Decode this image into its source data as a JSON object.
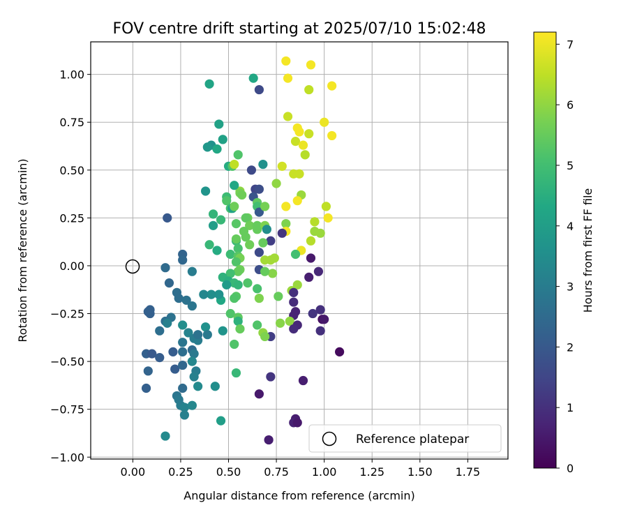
{
  "chart_data": {
    "type": "scatter",
    "title": "FOV centre drift starting at 2025/07/10 15:02:48",
    "xlabel": "Angular distance from reference (arcmin)",
    "ylabel": "Rotation from reference (arcmin)",
    "xlim": [
      -0.22,
      1.96
    ],
    "ylim": [
      -1.01,
      1.17
    ],
    "x_ticks": [
      "0.00",
      "0.25",
      "0.50",
      "0.75",
      "1.00",
      "1.25",
      "1.50",
      "1.75"
    ],
    "y_ticks": [
      "−1.00",
      "−0.75",
      "−0.50",
      "−0.25",
      "0.00",
      "0.25",
      "0.50",
      "0.75",
      "1.00"
    ],
    "grid": true,
    "colormap": "viridis",
    "colorbar": {
      "label": "Hours from first FF file",
      "range": [
        0,
        7.2
      ],
      "ticks": [
        "0",
        "1",
        "2",
        "3",
        "4",
        "5",
        "6",
        "7"
      ]
    },
    "legend": {
      "placement": "lower-right",
      "entries": [
        "Reference platepar"
      ]
    },
    "reference_point": {
      "x": 0.0,
      "y": 0.0
    },
    "points": [
      [
        0.8,
        1.07,
        7.1
      ],
      [
        0.93,
        1.05,
        7.1
      ],
      [
        0.81,
        0.98,
        7.1
      ],
      [
        1.04,
        0.94,
        7.1
      ],
      [
        0.92,
        0.92,
        6.5
      ],
      [
        0.81,
        0.78,
        6.6
      ],
      [
        1.0,
        0.75,
        7.0
      ],
      [
        0.86,
        0.72,
        7.1
      ],
      [
        0.87,
        0.7,
        7.1
      ],
      [
        0.92,
        0.69,
        6.6
      ],
      [
        1.04,
        0.68,
        7.1
      ],
      [
        0.85,
        0.65,
        6.6
      ],
      [
        0.89,
        0.63,
        7.0
      ],
      [
        0.9,
        0.58,
        6.4
      ],
      [
        0.78,
        0.52,
        6.7
      ],
      [
        0.84,
        0.48,
        6.6
      ],
      [
        0.87,
        0.48,
        6.6
      ],
      [
        0.75,
        0.43,
        6.0
      ],
      [
        0.88,
        0.37,
        6.1
      ],
      [
        0.86,
        0.34,
        7.1
      ],
      [
        0.8,
        0.31,
        7.1
      ],
      [
        1.01,
        0.31,
        6.5
      ],
      [
        1.02,
        0.25,
        7.1
      ],
      [
        0.95,
        0.23,
        6.4
      ],
      [
        0.8,
        0.22,
        5.8
      ],
      [
        0.95,
        0.18,
        6.1
      ],
      [
        0.98,
        0.17,
        6.1
      ],
      [
        0.8,
        0.18,
        7.1
      ],
      [
        0.78,
        0.17,
        1.1
      ],
      [
        0.93,
        0.13,
        6.4
      ],
      [
        0.88,
        0.08,
        7.0
      ],
      [
        0.85,
        0.06,
        5.0
      ],
      [
        0.93,
        0.04,
        0.5
      ],
      [
        0.97,
        -0.03,
        0.8
      ],
      [
        0.92,
        -0.06,
        0.6
      ],
      [
        0.86,
        -0.1,
        6.1
      ],
      [
        0.83,
        -0.13,
        6.1
      ],
      [
        0.84,
        -0.14,
        1.0
      ],
      [
        0.84,
        -0.19,
        0.9
      ],
      [
        0.85,
        -0.24,
        0.7
      ],
      [
        0.98,
        -0.23,
        1.0
      ],
      [
        0.84,
        -0.26,
        0.7
      ],
      [
        0.94,
        -0.25,
        1.1
      ],
      [
        0.99,
        -0.28,
        0.3
      ],
      [
        1.0,
        -0.28,
        0.5
      ],
      [
        0.82,
        -0.29,
        6.0
      ],
      [
        0.86,
        -0.31,
        0.8
      ],
      [
        0.84,
        -0.33,
        0.9
      ],
      [
        0.98,
        -0.34,
        1.0
      ],
      [
        1.08,
        -0.45,
        0.2
      ],
      [
        0.89,
        -0.6,
        0.6
      ],
      [
        0.85,
        -0.8,
        0.6
      ],
      [
        0.84,
        -0.82,
        0.7
      ],
      [
        0.86,
        -0.82,
        0.5
      ],
      [
        0.71,
        -0.91,
        0.6
      ],
      [
        0.66,
        -0.67,
        0.5
      ],
      [
        0.72,
        -0.58,
        1.1
      ],
      [
        0.72,
        -0.37,
        1.3
      ],
      [
        0.77,
        -0.3,
        5.9
      ],
      [
        0.73,
        -0.04,
        5.9
      ],
      [
        0.4,
        0.95,
        4.2
      ],
      [
        0.63,
        0.98,
        4.3
      ],
      [
        0.66,
        0.92,
        1.6
      ],
      [
        0.45,
        0.74,
        4.1
      ],
      [
        0.47,
        0.66,
        4.1
      ],
      [
        0.41,
        0.63,
        3.6
      ],
      [
        0.39,
        0.62,
        3.8
      ],
      [
        0.44,
        0.61,
        4.3
      ],
      [
        0.55,
        0.58,
        5.2
      ],
      [
        0.5,
        0.52,
        4.4
      ],
      [
        0.52,
        0.52,
        5.2
      ],
      [
        0.53,
        0.53,
        6.5
      ],
      [
        0.62,
        0.5,
        1.6
      ],
      [
        0.68,
        0.53,
        3.6
      ],
      [
        0.56,
        0.39,
        6.0
      ],
      [
        0.53,
        0.42,
        4.3
      ],
      [
        0.49,
        0.36,
        4.9
      ],
      [
        0.49,
        0.34,
        5.2
      ],
      [
        0.56,
        0.38,
        5.7
      ],
      [
        0.57,
        0.37,
        5.6
      ],
      [
        0.64,
        0.4,
        1.5
      ],
      [
        0.66,
        0.4,
        1.7
      ],
      [
        0.63,
        0.36,
        1.9
      ],
      [
        0.38,
        0.39,
        3.7
      ],
      [
        0.51,
        0.3,
        5.0
      ],
      [
        0.52,
        0.3,
        4.1
      ],
      [
        0.53,
        0.31,
        5.6
      ],
      [
        0.6,
        0.25,
        5.6
      ],
      [
        0.65,
        0.33,
        5.4
      ],
      [
        0.65,
        0.31,
        5.0
      ],
      [
        0.66,
        0.28,
        2.0
      ],
      [
        0.69,
        0.31,
        5.7
      ],
      [
        0.42,
        0.27,
        4.7
      ],
      [
        0.46,
        0.24,
        4.8
      ],
      [
        0.42,
        0.21,
        4.0
      ],
      [
        0.54,
        0.22,
        5.3
      ],
      [
        0.59,
        0.25,
        5.4
      ],
      [
        0.61,
        0.21,
        5.6
      ],
      [
        0.65,
        0.21,
        5.5
      ],
      [
        0.65,
        0.19,
        5.5
      ],
      [
        0.69,
        0.21,
        5.8
      ],
      [
        0.7,
        0.19,
        3.5
      ],
      [
        0.58,
        0.18,
        5.5
      ],
      [
        0.59,
        0.15,
        5.5
      ],
      [
        0.54,
        0.13,
        4.8
      ],
      [
        0.54,
        0.14,
        5.5
      ],
      [
        0.72,
        0.13,
        1.3
      ],
      [
        0.68,
        0.12,
        5.5
      ],
      [
        0.66,
        0.07,
        1.6
      ],
      [
        0.61,
        0.11,
        5.6
      ],
      [
        0.55,
        0.09,
        5.1
      ],
      [
        0.4,
        0.11,
        4.8
      ],
      [
        0.44,
        0.08,
        4.4
      ],
      [
        0.51,
        0.06,
        4.9
      ],
      [
        0.55,
        0.05,
        5.3
      ],
      [
        0.56,
        0.04,
        5.7
      ],
      [
        0.54,
        0.02,
        5.2
      ],
      [
        0.69,
        0.03,
        6.2
      ],
      [
        0.72,
        0.03,
        6.2
      ],
      [
        0.74,
        0.04,
        6.2
      ],
      [
        0.66,
        -0.02,
        1.7
      ],
      [
        0.56,
        -0.02,
        5.6
      ],
      [
        0.55,
        -0.03,
        5.5
      ],
      [
        0.69,
        -0.03,
        5.5
      ],
      [
        0.51,
        -0.04,
        5.0
      ],
      [
        0.47,
        -0.06,
        4.6
      ],
      [
        0.5,
        -0.08,
        4.5
      ],
      [
        0.53,
        -0.09,
        4.8
      ],
      [
        0.55,
        -0.1,
        4.7
      ],
      [
        0.49,
        -0.1,
        3.9
      ],
      [
        0.6,
        -0.09,
        5.2
      ],
      [
        0.65,
        -0.12,
        5.1
      ],
      [
        0.54,
        -0.16,
        5.3
      ],
      [
        0.53,
        -0.17,
        5.2
      ],
      [
        0.66,
        -0.17,
        5.8
      ],
      [
        0.76,
        -0.16,
        5.5
      ],
      [
        0.46,
        -0.18,
        4.3
      ],
      [
        0.45,
        -0.15,
        3.6
      ],
      [
        0.41,
        -0.15,
        3.5
      ],
      [
        0.37,
        -0.15,
        3.3
      ],
      [
        0.51,
        -0.25,
        5.2
      ],
      [
        0.55,
        -0.27,
        5.4
      ],
      [
        0.55,
        -0.29,
        4.6
      ],
      [
        0.56,
        -0.33,
        5.5
      ],
      [
        0.65,
        -0.31,
        5.2
      ],
      [
        0.68,
        -0.35,
        6.0
      ],
      [
        0.69,
        -0.37,
        5.8
      ],
      [
        0.53,
        -0.41,
        5.2
      ],
      [
        0.47,
        -0.34,
        3.7
      ],
      [
        0.54,
        -0.56,
        4.8
      ],
      [
        0.46,
        -0.81,
        4.0
      ],
      [
        0.43,
        -0.63,
        3.5
      ],
      [
        0.31,
        -0.03,
        3.0
      ],
      [
        0.26,
        0.06,
        2.3
      ],
      [
        0.26,
        0.03,
        2.4
      ],
      [
        0.18,
        0.25,
        2.0
      ],
      [
        0.17,
        -0.01,
        2.5
      ],
      [
        0.19,
        -0.09,
        2.4
      ],
      [
        0.23,
        -0.14,
        2.6
      ],
      [
        0.24,
        -0.17,
        2.6
      ],
      [
        0.28,
        -0.18,
        2.7
      ],
      [
        0.31,
        -0.21,
        2.8
      ],
      [
        0.09,
        -0.23,
        2.2
      ],
      [
        0.08,
        -0.24,
        2.2
      ],
      [
        0.09,
        -0.25,
        2.2
      ],
      [
        0.2,
        -0.27,
        2.7
      ],
      [
        0.17,
        -0.29,
        2.6
      ],
      [
        0.18,
        -0.3,
        3.1
      ],
      [
        0.14,
        -0.34,
        2.6
      ],
      [
        0.26,
        -0.31,
        3.5
      ],
      [
        0.29,
        -0.35,
        3.2
      ],
      [
        0.32,
        -0.38,
        3.0
      ],
      [
        0.34,
        -0.39,
        3.0
      ],
      [
        0.34,
        -0.36,
        2.7
      ],
      [
        0.38,
        -0.32,
        3.6
      ],
      [
        0.39,
        -0.36,
        2.9
      ],
      [
        0.26,
        -0.4,
        2.8
      ],
      [
        0.31,
        -0.44,
        2.5
      ],
      [
        0.32,
        -0.46,
        2.9
      ],
      [
        0.07,
        -0.46,
        2.2
      ],
      [
        0.1,
        -0.46,
        2.0
      ],
      [
        0.14,
        -0.48,
        2.1
      ],
      [
        0.21,
        -0.45,
        2.1
      ],
      [
        0.26,
        -0.45,
        2.6
      ],
      [
        0.31,
        -0.5,
        3.3
      ],
      [
        0.08,
        -0.55,
        2.3
      ],
      [
        0.22,
        -0.54,
        2.1
      ],
      [
        0.26,
        -0.52,
        2.4
      ],
      [
        0.33,
        -0.55,
        3.0
      ],
      [
        0.32,
        -0.58,
        3.1
      ],
      [
        0.07,
        -0.64,
        2.2
      ],
      [
        0.26,
        -0.64,
        2.5
      ],
      [
        0.34,
        -0.63,
        3.4
      ],
      [
        0.23,
        -0.68,
        2.8
      ],
      [
        0.24,
        -0.7,
        2.9
      ],
      [
        0.25,
        -0.73,
        3.0
      ],
      [
        0.27,
        -0.74,
        3.2
      ],
      [
        0.31,
        -0.73,
        3.3
      ],
      [
        0.27,
        -0.78,
        3.1
      ],
      [
        0.17,
        -0.89,
        3.4
      ]
    ]
  }
}
